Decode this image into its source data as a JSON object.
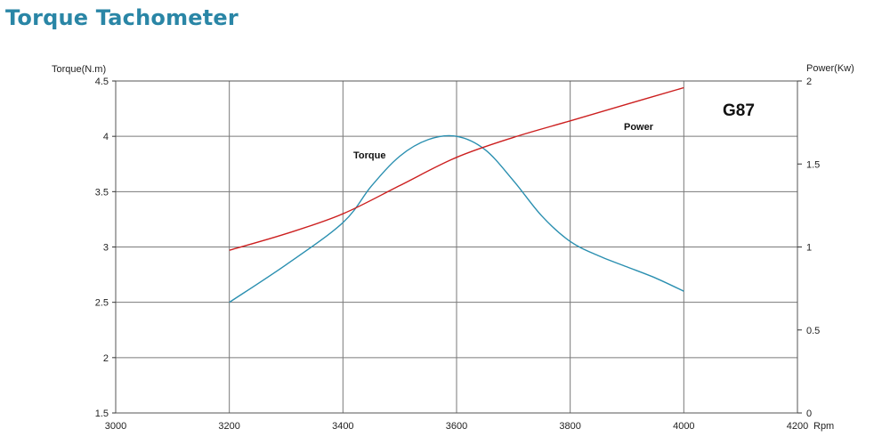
{
  "page": {
    "title": "Torque Tachometer"
  },
  "chart_data": {
    "type": "line",
    "model_label": "G87",
    "xlabel": "Rpm",
    "ylabel_left": "Torque(N.m)",
    "ylabel_right": "Power(Kw)",
    "xlim": [
      3000,
      4200
    ],
    "ylim_left": [
      1.5,
      4.5
    ],
    "ylim_right": [
      0,
      2
    ],
    "x_ticks": [
      "3000",
      "3200",
      "3400",
      "3600",
      "3800",
      "4000",
      "4200"
    ],
    "y_left_ticks": [
      "1.5",
      "2",
      "2.5",
      "3",
      "3.5",
      "4",
      "4.5"
    ],
    "y_right_ticks": [
      "0",
      "0.5",
      "1",
      "1.5",
      "2"
    ],
    "grid": true,
    "colors": {
      "torque": "#2a8fb0",
      "power": "#cc1f1f",
      "grid": "#7a7a7a",
      "title": "#2a86a6"
    },
    "series": [
      {
        "name": "Torque",
        "axis": "left",
        "x": [
          3200,
          3300,
          3400,
          3450,
          3500,
          3550,
          3600,
          3650,
          3700,
          3750,
          3800,
          3850,
          3900,
          3950,
          4000
        ],
        "y": [
          2.5,
          2.84,
          3.22,
          3.55,
          3.82,
          3.97,
          4.0,
          3.88,
          3.6,
          3.28,
          3.05,
          2.92,
          2.82,
          2.72,
          2.6
        ]
      },
      {
        "name": "Power",
        "axis": "right",
        "x": [
          3200,
          3300,
          3400,
          3500,
          3600,
          3700,
          3800,
          3900,
          4000
        ],
        "y": [
          0.98,
          1.08,
          1.2,
          1.37,
          1.54,
          1.66,
          1.76,
          1.86,
          1.96
        ]
      }
    ]
  }
}
